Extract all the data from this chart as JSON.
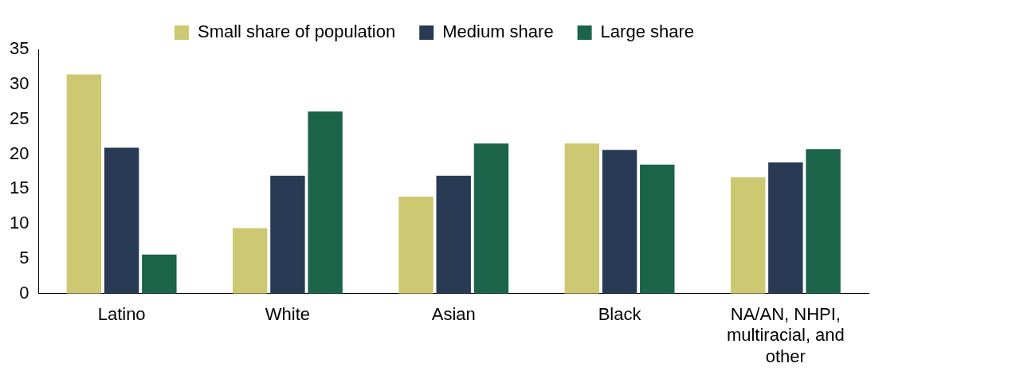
{
  "chart_data": {
    "type": "bar",
    "categories": [
      "Latino",
      "White",
      "Asian",
      "Black",
      "NA/AN, NHPI, multiracial, and other"
    ],
    "series": [
      {
        "name": "Small share of population",
        "color": "#cdc872",
        "values": [
          31.4,
          9.4,
          13.9,
          21.5,
          16.7
        ]
      },
      {
        "name": "Medium share",
        "color": "#283a54",
        "values": [
          20.9,
          16.9,
          16.9,
          20.6,
          18.8
        ]
      },
      {
        "name": "Large share",
        "color": "#1b644a",
        "values": [
          5.6,
          26.1,
          21.5,
          18.5,
          20.7
        ]
      }
    ],
    "ylim": [
      0,
      35
    ],
    "yticks": [
      0,
      5,
      10,
      15,
      20,
      25,
      30,
      35
    ],
    "grid": false,
    "legend": "top"
  }
}
